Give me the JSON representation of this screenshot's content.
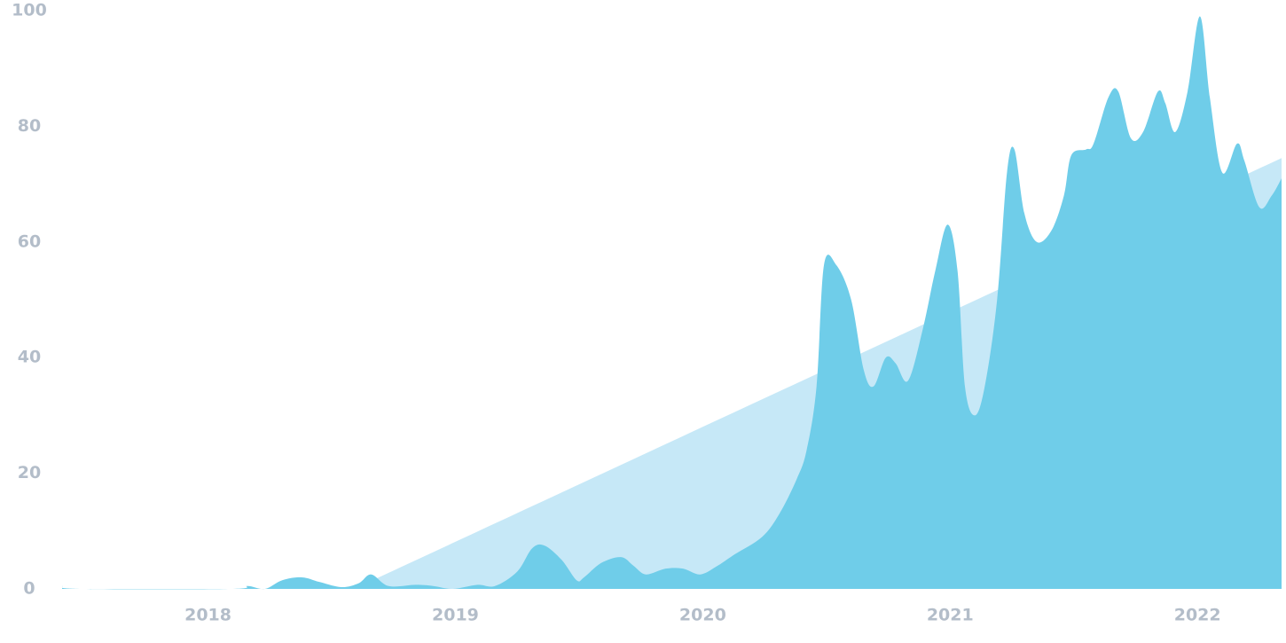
{
  "chart_data": {
    "type": "area",
    "xlim": [
      2017.41,
      2022.34
    ],
    "xticks": [
      2018,
      2019,
      2020,
      2021,
      2022
    ],
    "ylim": [
      0,
      100
    ],
    "yticks": [
      0,
      20,
      40,
      60,
      80,
      100
    ],
    "series": [
      {
        "color": "#c6e8f7",
        "x": [
          2018.59,
          2022.34
        ],
        "values": [
          0,
          74.5
        ]
      },
      {
        "color": "#6fcde9",
        "x": [
          2017.41,
          2017.48,
          2018.09,
          2018.16,
          2018.23,
          2018.3,
          2018.38,
          2018.45,
          2018.54,
          2018.61,
          2018.66,
          2018.73,
          2018.84,
          2018.91,
          2018.99,
          2019.09,
          2019.16,
          2019.25,
          2019.31,
          2019.36,
          2019.43,
          2019.49,
          2019.52,
          2019.59,
          2019.67,
          2019.72,
          2019.77,
          2019.85,
          2019.92,
          2019.99,
          2020.06,
          2020.13,
          2020.24,
          2020.31,
          2020.38,
          2020.42,
          2020.46,
          2020.49,
          2020.54,
          2020.6,
          2020.65,
          2020.69,
          2020.74,
          2020.78,
          2020.83,
          2020.89,
          2020.94,
          2020.99,
          2021.03,
          2021.06,
          2021.1,
          2021.14,
          2021.19,
          2021.23,
          2021.26,
          2021.3,
          2021.35,
          2021.41,
          2021.46,
          2021.49,
          2021.55,
          2021.58,
          2021.64,
          2021.68,
          2021.73,
          2021.78,
          2021.84,
          2021.87,
          2021.91,
          2021.96,
          2022.01,
          2022.05,
          2022.1,
          2022.16,
          2022.19,
          2022.25,
          2022.3,
          2022.34
        ],
        "values": [
          0.5,
          0,
          0,
          0.5,
          0,
          1.5,
          2,
          1.2,
          0.3,
          1,
          2.5,
          0.5,
          0.7,
          0.5,
          0,
          0.7,
          0.5,
          3,
          7,
          7.5,
          5,
          1.5,
          2,
          4.5,
          5.5,
          4,
          2.5,
          3.5,
          3.5,
          2.5,
          4,
          6,
          9,
          13,
          19,
          24,
          35,
          56,
          56,
          50,
          38,
          35,
          40,
          39,
          36,
          45,
          55,
          63,
          55,
          35,
          30,
          35,
          50,
          72,
          76,
          65,
          60,
          62,
          68,
          75,
          76,
          77,
          85,
          86,
          78,
          79,
          86,
          84,
          79,
          86,
          99,
          85,
          72,
          77,
          74,
          66,
          68,
          71
        ]
      }
    ]
  }
}
